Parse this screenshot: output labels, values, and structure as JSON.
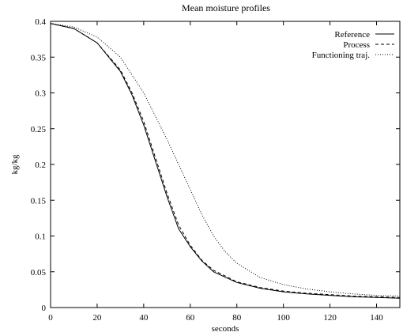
{
  "chart_data": {
    "type": "line",
    "title": "Mean moisture profiles",
    "xlabel": "seconds",
    "ylabel": "kg/kg",
    "xlim": [
      0,
      150
    ],
    "ylim": [
      0,
      0.4
    ],
    "xticks": [
      0,
      20,
      40,
      60,
      80,
      100,
      120,
      140
    ],
    "yticks": [
      0,
      0.05,
      0.1,
      0.15,
      0.2,
      0.25,
      0.3,
      0.35,
      0.4
    ],
    "grid": false,
    "legend_position": "top-right",
    "series": [
      {
        "name": "Reference",
        "style": "solid",
        "x": [
          0,
          10,
          20,
          30,
          35,
          40,
          45,
          50,
          55,
          60,
          65,
          70,
          80,
          90,
          100,
          110,
          120,
          130,
          140,
          150
        ],
        "y": [
          0.397,
          0.39,
          0.37,
          0.33,
          0.297,
          0.255,
          0.205,
          0.155,
          0.11,
          0.085,
          0.065,
          0.05,
          0.035,
          0.027,
          0.022,
          0.019,
          0.017,
          0.015,
          0.014,
          0.013
        ]
      },
      {
        "name": "Process",
        "style": "dashed",
        "x": [
          0,
          10,
          20,
          30,
          35,
          40,
          45,
          50,
          55,
          60,
          65,
          70,
          80,
          90,
          100,
          110,
          120,
          130,
          140,
          150
        ],
        "y": [
          0.397,
          0.39,
          0.37,
          0.332,
          0.3,
          0.26,
          0.21,
          0.16,
          0.115,
          0.087,
          0.066,
          0.052,
          0.036,
          0.028,
          0.023,
          0.02,
          0.018,
          0.016,
          0.015,
          0.014
        ]
      },
      {
        "name": "Functioning traj.",
        "style": "dotted",
        "x": [
          0,
          10,
          20,
          30,
          40,
          50,
          55,
          60,
          65,
          70,
          75,
          80,
          90,
          100,
          110,
          120,
          130,
          140,
          150
        ],
        "y": [
          0.397,
          0.392,
          0.378,
          0.35,
          0.3,
          0.235,
          0.2,
          0.165,
          0.13,
          0.1,
          0.078,
          0.062,
          0.042,
          0.032,
          0.026,
          0.022,
          0.019,
          0.017,
          0.016
        ]
      }
    ]
  }
}
